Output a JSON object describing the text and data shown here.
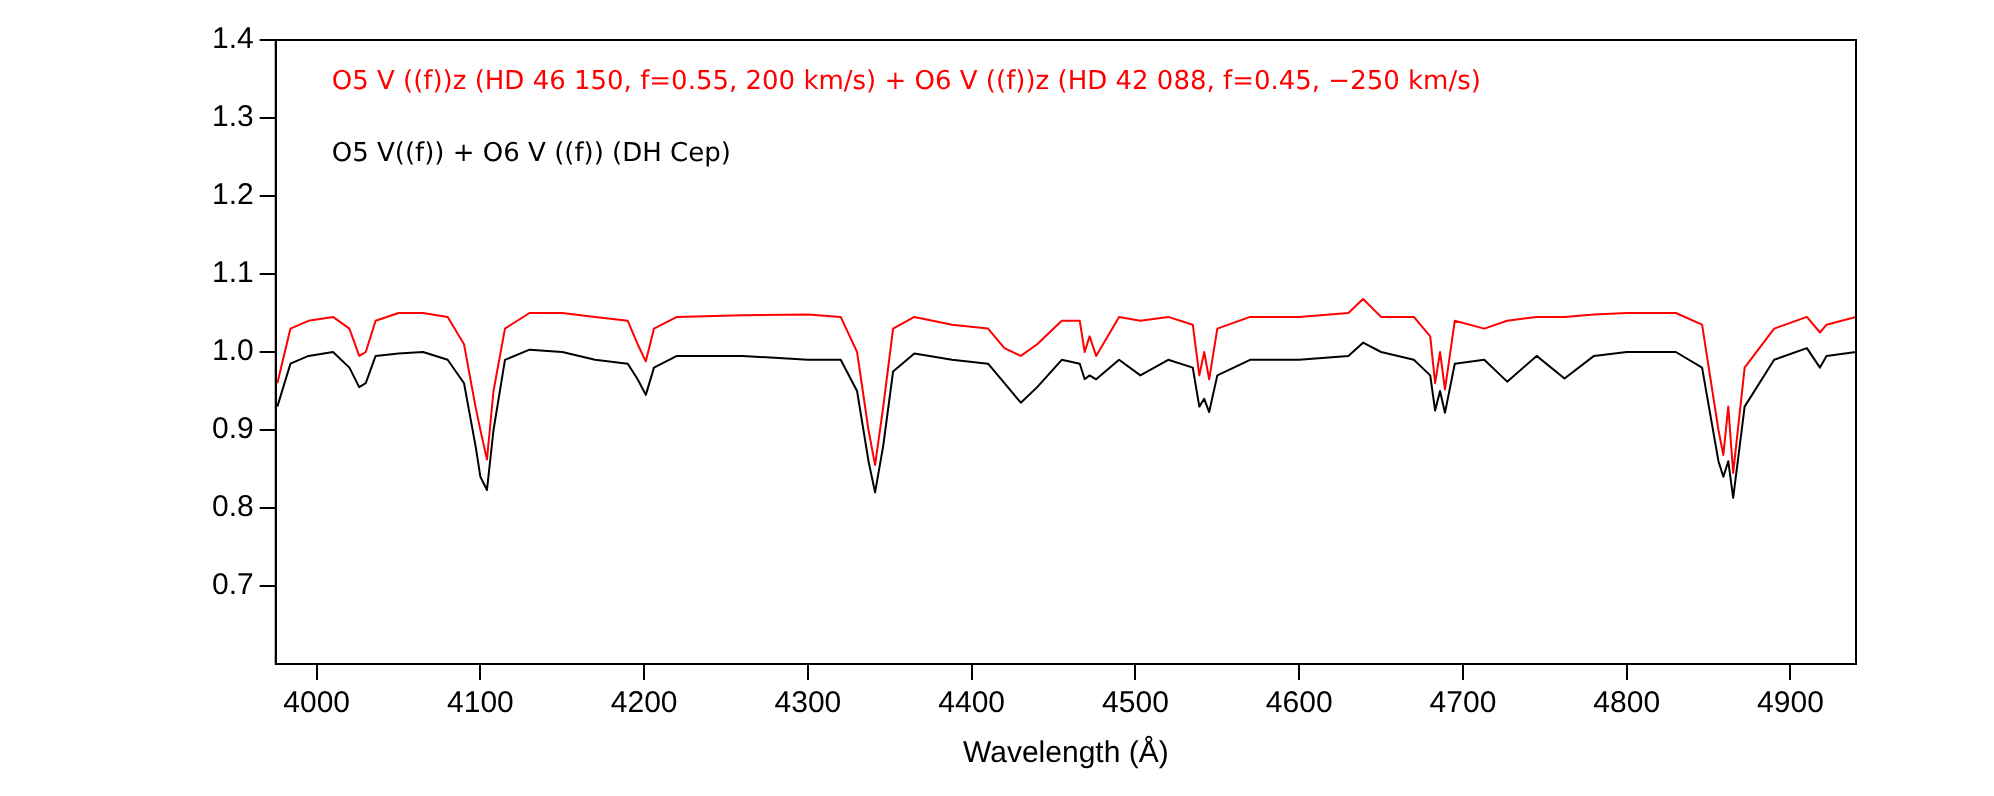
{
  "chart_data": {
    "type": "line",
    "xlabel": "Wavelength (Å)",
    "xlim": [
      3975,
      4940
    ],
    "ylim": [
      0.6,
      1.4
    ],
    "xticks": [
      4000,
      4100,
      4200,
      4300,
      4400,
      4500,
      4600,
      4700,
      4800,
      4900
    ],
    "yticks": [
      0.7,
      0.8,
      0.9,
      {
        "value": 1,
        "label": "1.0"
      },
      1.1,
      1.2,
      1.3,
      1.4
    ],
    "grid": false,
    "legend": "top left",
    "marker": "none",
    "line_style": "solid",
    "x": [
      3976,
      3984,
      3995,
      4010,
      4020,
      4026,
      4030,
      4036,
      4050,
      4065,
      4080,
      4090,
      4097,
      4100,
      4104,
      4108,
      4115,
      4130,
      4150,
      4170,
      4190,
      4196,
      4201,
      4206,
      4220,
      4260,
      4300,
      4320,
      4330,
      4337,
      4341,
      4346,
      4352,
      4365,
      4388,
      4410,
      4420,
      4430,
      4440,
      4455,
      4466,
      4469,
      4472,
      4476,
      4490,
      4503,
      4520,
      4535,
      4539,
      4542,
      4545,
      4550,
      4570,
      4600,
      4630,
      4639,
      4650,
      4670,
      4680,
      4683,
      4686,
      4689,
      4695,
      4713,
      4727,
      4745,
      4762,
      4780,
      4800,
      4830,
      4846,
      4856,
      4859,
      4862,
      4865,
      4872,
      4890,
      4910,
      4918,
      4922,
      4940
    ],
    "series": [
      {
        "name": "O5 V ((f))z (HD 46 150, f=0.55, 200 km/s) + O6 V ((f))z (HD 42 088, f=0.45, −250 km/s)",
        "color": "#ff0000",
        "values": [
          0.96,
          1.03,
          1.04,
          1.045,
          1.03,
          0.995,
          1.0,
          1.04,
          1.05,
          1.05,
          1.045,
          1.01,
          0.93,
          0.9,
          0.862,
          0.95,
          1.03,
          1.05,
          1.05,
          1.045,
          1.04,
          1.01,
          0.988,
          1.03,
          1.045,
          1.047,
          1.048,
          1.045,
          1.0,
          0.9,
          0.855,
          0.93,
          1.03,
          1.045,
          1.035,
          1.03,
          1.005,
          0.995,
          1.01,
          1.04,
          1.04,
          1.0,
          1.02,
          0.995,
          1.045,
          1.04,
          1.045,
          1.035,
          0.97,
          1.0,
          0.965,
          1.03,
          1.045,
          1.045,
          1.05,
          1.068,
          1.045,
          1.045,
          1.02,
          0.96,
          1.0,
          0.952,
          1.04,
          1.03,
          1.04,
          1.045,
          1.045,
          1.048,
          1.05,
          1.05,
          1.035,
          0.9,
          0.868,
          0.93,
          0.845,
          0.98,
          1.03,
          1.045,
          1.025,
          1.035,
          1.045
        ]
      },
      {
        "name": "O5 V((f)) + O6 V ((f)) (DH Cep)",
        "color": "#000000",
        "values": [
          0.93,
          0.985,
          0.995,
          1.0,
          0.98,
          0.955,
          0.96,
          0.995,
          0.998,
          1.0,
          0.99,
          0.96,
          0.88,
          0.84,
          0.823,
          0.9,
          0.99,
          1.003,
          1.0,
          0.99,
          0.985,
          0.965,
          0.945,
          0.98,
          0.995,
          0.995,
          0.99,
          0.99,
          0.95,
          0.86,
          0.82,
          0.88,
          0.975,
          0.998,
          0.99,
          0.985,
          0.96,
          0.935,
          0.955,
          0.99,
          0.985,
          0.965,
          0.97,
          0.965,
          0.99,
          0.97,
          0.99,
          0.98,
          0.93,
          0.94,
          0.923,
          0.97,
          0.99,
          0.99,
          0.995,
          1.012,
          1.0,
          0.99,
          0.97,
          0.925,
          0.95,
          0.922,
          0.985,
          0.99,
          0.962,
          0.995,
          0.966,
          0.995,
          1.0,
          1.0,
          0.98,
          0.86,
          0.84,
          0.86,
          0.813,
          0.93,
          0.99,
          1.005,
          0.98,
          0.995,
          1.0
        ]
      }
    ]
  }
}
